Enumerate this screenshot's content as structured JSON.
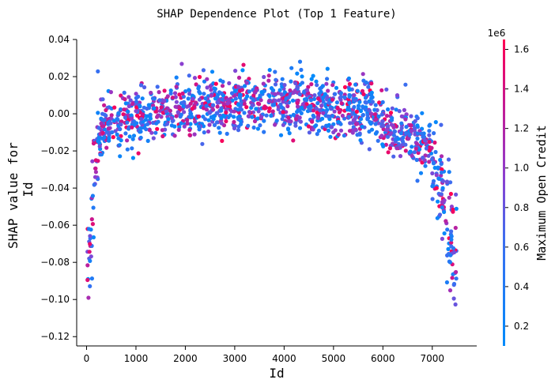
{
  "chart_data": {
    "type": "scatter",
    "title": "SHAP Dependence Plot (Top 1 Feature)",
    "xlabel": "Id",
    "ylabel_line1": "SHAP value for",
    "ylabel_line2": "Id",
    "xlim": [
      -200,
      7900
    ],
    "ylim": [
      -0.125,
      0.04
    ],
    "xticks": [
      0,
      1000,
      2000,
      3000,
      4000,
      5000,
      6000,
      7000
    ],
    "xtick_labels": [
      "0",
      "1000",
      "2000",
      "3000",
      "4000",
      "5000",
      "6000",
      "7000"
    ],
    "yticks": [
      0.04,
      0.02,
      0.0,
      -0.02,
      -0.04,
      -0.06,
      -0.08,
      -0.1,
      -0.12
    ],
    "ytick_labels": [
      "0.04",
      "0.02",
      "0.00",
      "−0.02",
      "−0.04",
      "−0.06",
      "−0.08",
      "−0.10",
      "−0.12"
    ],
    "colorbar": {
      "label": "Maximum Open Credit",
      "offset_text": "1e6",
      "range": [
        0.1,
        1.65
      ],
      "ticks": [
        0.2,
        0.4,
        0.6,
        0.8,
        1.0,
        1.2,
        1.4,
        1.6
      ],
      "tick_labels": [
        "0.2",
        "0.4",
        "0.6",
        "0.8",
        "1.0",
        "1.2",
        "1.4",
        "1.6"
      ],
      "colors": [
        "#008bfb",
        "#ff0052"
      ]
    },
    "points_seed": 20240607,
    "point_count": 1500
  }
}
